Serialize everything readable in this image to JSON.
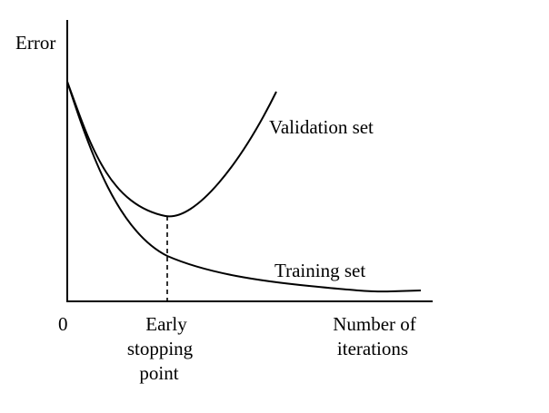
{
  "colors": {
    "ink": "#000000",
    "background": "#ffffff"
  },
  "labels": {
    "y_axis": "Error",
    "origin": "0",
    "validation": "Validation set",
    "training": "Training set",
    "early_stop_1": "Early",
    "early_stop_2": "stopping",
    "early_stop_3": "point",
    "x_axis_1": "Number of",
    "x_axis_2": "iterations"
  }
}
